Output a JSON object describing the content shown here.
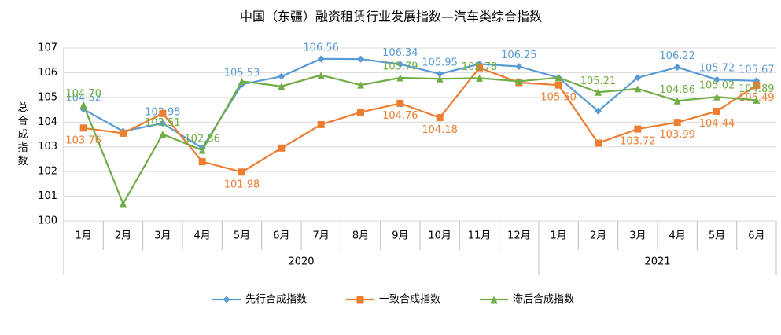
{
  "chart_data": {
    "type": "line",
    "title": "中国（东疆）融资租赁行业发展指数—汽车类综合指数",
    "y_label": "总合成指数",
    "categories": [
      "1月",
      "2月",
      "3月",
      "4月",
      "5月",
      "6月",
      "7月",
      "8月",
      "9月",
      "10月",
      "11月",
      "12月",
      "1月",
      "2月",
      "3月",
      "4月",
      "5月",
      "6月"
    ],
    "x_groups": [
      {
        "name": "2020",
        "count": 12
      },
      {
        "name": "2021",
        "count": 6
      }
    ],
    "series": [
      {
        "name": "先行合成指数",
        "color": "#5b9bd5",
        "values": [
          104.52,
          103.63,
          103.95,
          102.95,
          105.53,
          105.85,
          106.56,
          106.55,
          106.34,
          105.95,
          106.35,
          106.25,
          105.8,
          104.45,
          105.8,
          106.22,
          105.72,
          105.67
        ],
        "value_labels": [
          "104.52",
          null,
          "103.95",
          null,
          "105.53",
          null,
          "106.56",
          null,
          "106.34",
          "105.95",
          null,
          "106.25",
          null,
          null,
          null,
          "106.22",
          "105.72",
          "105.67"
        ]
      },
      {
        "name": "一致合成指数",
        "color": "#ed7d31",
        "values": [
          103.76,
          103.55,
          104.35,
          102.4,
          101.98,
          102.95,
          103.9,
          104.4,
          104.76,
          104.18,
          106.2,
          105.6,
          105.5,
          103.15,
          103.72,
          103.99,
          104.44,
          105.49
        ],
        "value_labels": [
          "103.76",
          null,
          null,
          null,
          "101.98",
          null,
          null,
          null,
          "104.76",
          "104.18",
          null,
          null,
          "105.50",
          null,
          "103.72",
          "103.99",
          "104.44",
          "105.49"
        ]
      },
      {
        "name": "滞后合成指数",
        "color": "#70ad47",
        "values": [
          104.7,
          100.7,
          103.51,
          102.86,
          105.65,
          105.45,
          105.9,
          105.5,
          105.79,
          105.75,
          105.78,
          105.65,
          105.8,
          105.21,
          105.35,
          104.86,
          105.02,
          104.89
        ],
        "value_labels": [
          "104.70",
          null,
          "103.51",
          "102.86",
          null,
          null,
          null,
          null,
          "105.79",
          null,
          "105.78",
          null,
          null,
          "105.21",
          null,
          "104.86",
          "105.02",
          "104.89"
        ]
      }
    ],
    "ylim": [
      100,
      107
    ],
    "yticks": [
      100,
      101,
      102,
      103,
      104,
      105,
      106,
      107
    ],
    "grid": true
  }
}
